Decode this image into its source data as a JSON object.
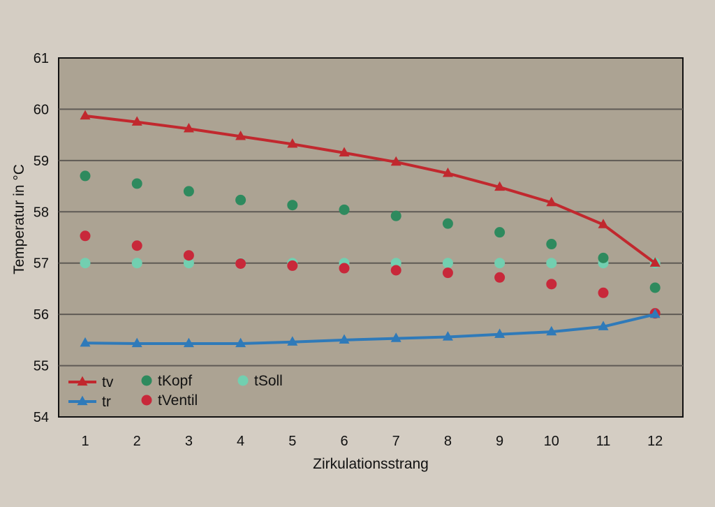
{
  "chart_data": {
    "type": "line",
    "xlabel": "Zirkulationsstrang",
    "ylabel": "Temperatur in °C",
    "x": [
      1,
      2,
      3,
      4,
      5,
      6,
      7,
      8,
      9,
      10,
      11,
      12
    ],
    "ylim": [
      54,
      61
    ],
    "yticks": [
      54,
      55,
      56,
      57,
      58,
      59,
      60,
      61
    ],
    "grid": "horizontal",
    "legend_position": "bottom-left",
    "colors": {
      "plot_bg": "#aca393",
      "page_bg": "#d4cdc3",
      "grid": "#5f5a55",
      "tv": "#c1282e",
      "tr": "#2f7ab9",
      "tKopf": "#2e8a5e",
      "tVentil": "#c8283a",
      "tSoll": "#72cfb0"
    },
    "series": [
      {
        "name": "tv",
        "kind": "line-triangle",
        "values": [
          59.87,
          59.75,
          59.62,
          59.47,
          59.32,
          59.15,
          58.97,
          58.75,
          58.48,
          58.18,
          57.75,
          57.0
        ]
      },
      {
        "name": "tr",
        "kind": "line-triangle",
        "values": [
          55.44,
          55.43,
          55.43,
          55.43,
          55.46,
          55.5,
          55.53,
          55.56,
          55.61,
          55.66,
          55.76,
          56.0
        ]
      },
      {
        "name": "tKopf",
        "kind": "dot",
        "values": [
          58.7,
          58.55,
          58.4,
          58.23,
          58.13,
          58.04,
          57.92,
          57.77,
          57.6,
          57.37,
          57.1,
          56.52
        ]
      },
      {
        "name": "tVentil",
        "kind": "dot",
        "values": [
          57.53,
          57.34,
          57.15,
          56.99,
          56.95,
          56.9,
          56.86,
          56.81,
          56.72,
          56.59,
          56.42,
          56.02
        ]
      },
      {
        "name": "tSoll",
        "kind": "dot",
        "values": [
          57.0,
          57.0,
          57.0,
          57.0,
          57.0,
          57.0,
          57.0,
          57.0,
          57.0,
          57.0,
          57.0,
          57.0
        ]
      }
    ],
    "legend": [
      {
        "name": "tv",
        "kind": "line-triangle"
      },
      {
        "name": "tr",
        "kind": "line-triangle"
      },
      {
        "name": "tKopf",
        "kind": "dot"
      },
      {
        "name": "tVentil",
        "kind": "dot"
      },
      {
        "name": "tSoll",
        "kind": "dot"
      }
    ]
  }
}
